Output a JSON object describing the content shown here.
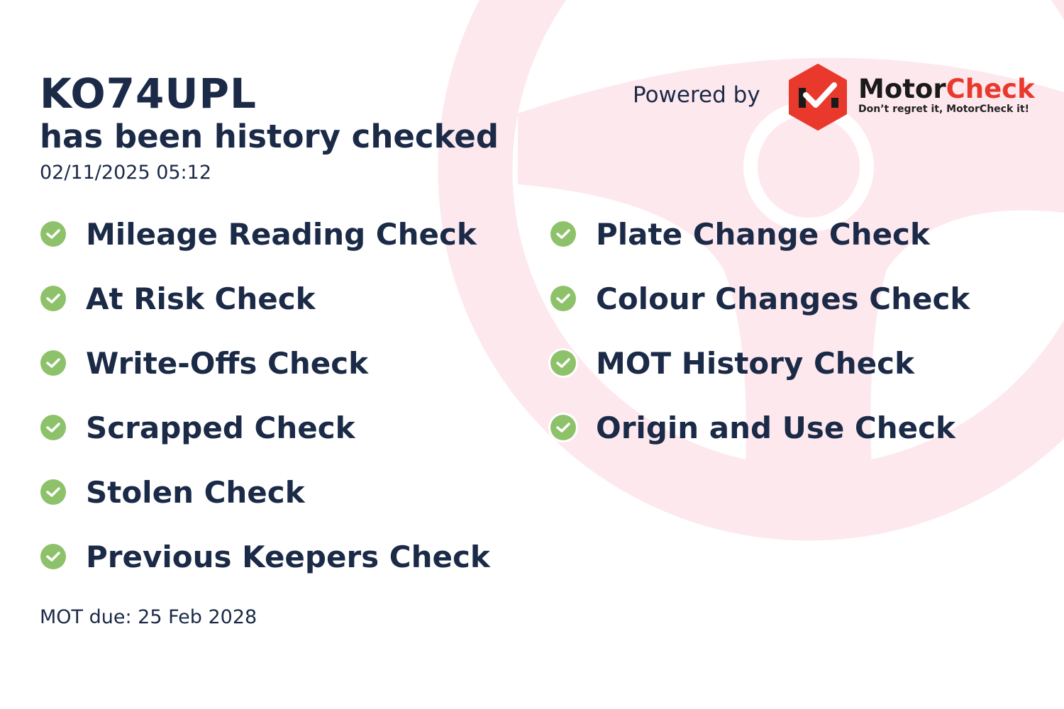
{
  "vehicle": {
    "registration": "KO74UPL",
    "status_line": "has been history checked",
    "checked_at": "02/11/2025 05:12"
  },
  "branding": {
    "powered_by": "Powered by",
    "brand_part1": "Motor",
    "brand_part2": "Check",
    "tagline": "Don’t regret it, MotorCheck it!",
    "brand_color": "#e8392c",
    "watermark_color": "#fde8ee"
  },
  "checks_left": [
    {
      "label": "Mileage Reading Check",
      "icon": "check-circle-icon"
    },
    {
      "label": "At Risk Check",
      "icon": "check-circle-icon"
    },
    {
      "label": "Write-Offs Check",
      "icon": "check-circle-icon"
    },
    {
      "label": "Scrapped Check",
      "icon": "check-circle-icon"
    },
    {
      "label": "Stolen Check",
      "icon": "check-circle-icon"
    },
    {
      "label": "Previous Keepers Check",
      "icon": "check-circle-icon"
    }
  ],
  "checks_right": [
    {
      "label": "Plate Change Check",
      "icon": "check-circle-icon"
    },
    {
      "label": "Colour Changes Check",
      "icon": "check-circle-icon"
    },
    {
      "label": "MOT History Check",
      "icon": "check-circle-icon"
    },
    {
      "label": "Origin and Use Check",
      "icon": "check-circle-icon"
    }
  ],
  "mot_due": "MOT due: 25 Feb 2028",
  "colors": {
    "text": "#1b2a47",
    "check": "#8dc26b"
  }
}
